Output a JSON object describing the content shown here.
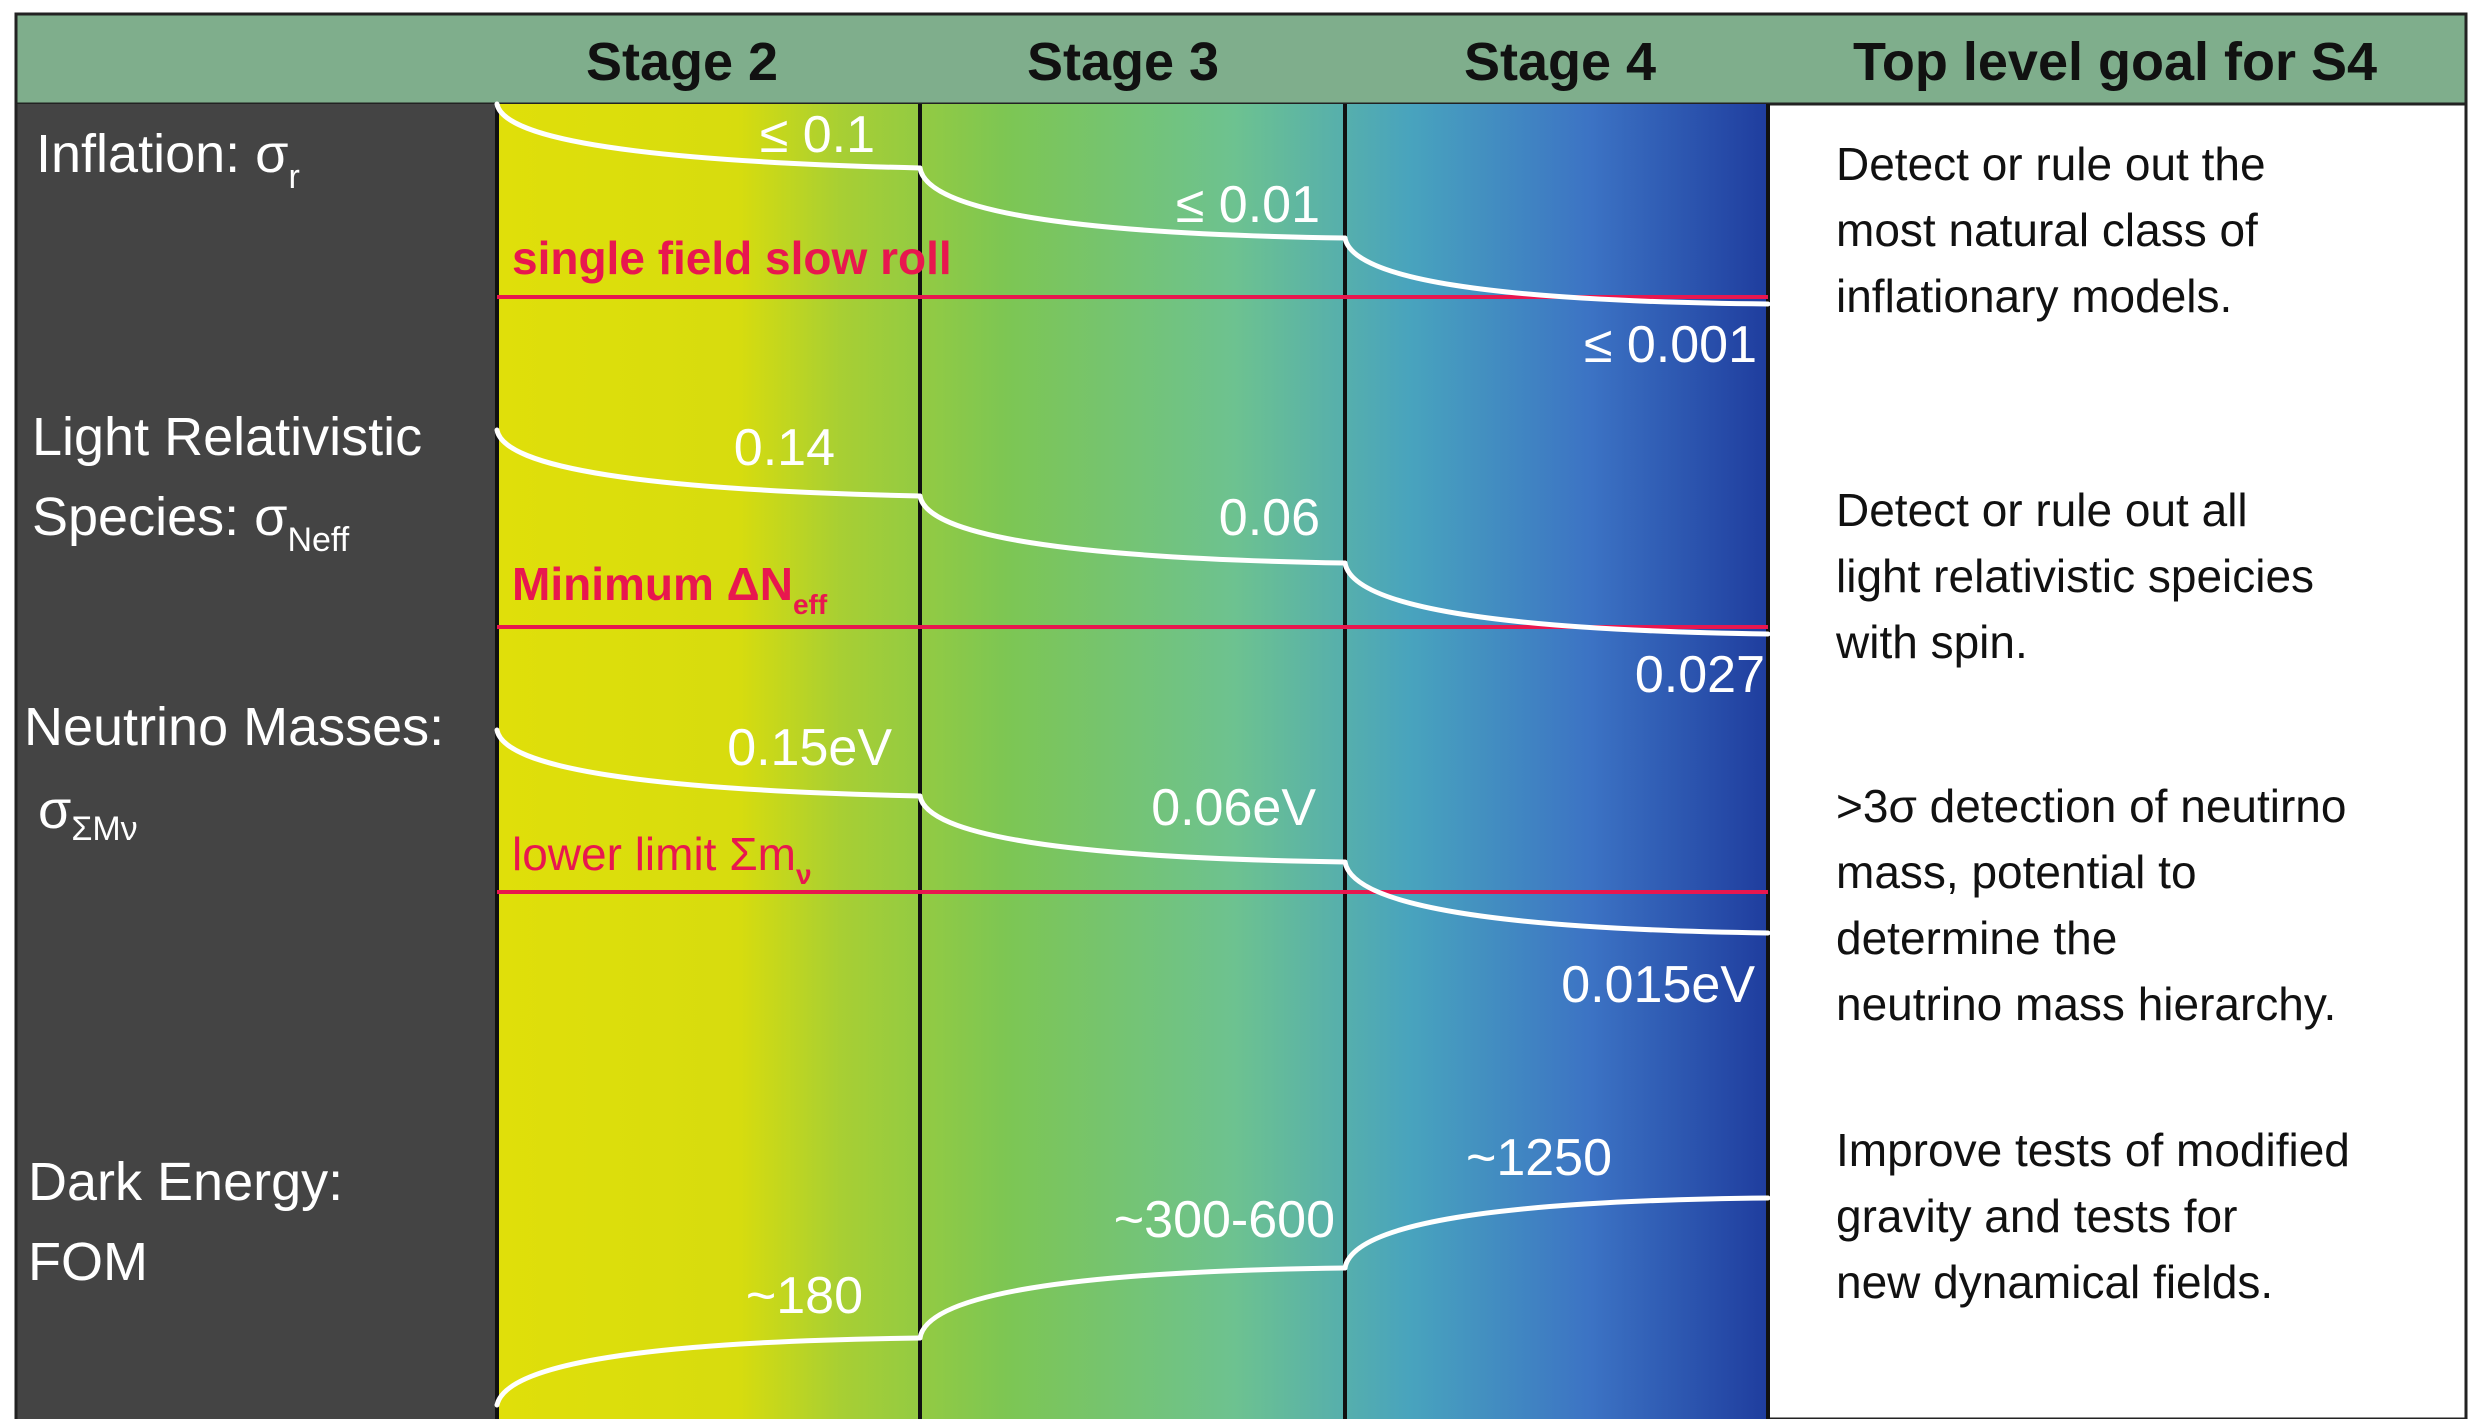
{
  "header": {
    "stages": [
      "Stage 2",
      "Stage 3",
      "Stage 4"
    ],
    "goal_title": "Top level goal for S4"
  },
  "rows": [
    {
      "label_lines": [
        "Inflation: σ"
      ],
      "label_sub": "r",
      "stage_values": [
        "≤ 0.1",
        "≤ 0.01",
        "≤ 0.001"
      ],
      "threshold": {
        "text": "single field slow roll",
        "sub": ""
      },
      "goal_lines": [
        "Detect or rule out the",
        "most natural class of",
        "inflationary models."
      ]
    },
    {
      "label_lines": [
        "Light Relativistic",
        "Species: σ"
      ],
      "label_sub": "Neff",
      "stage_values": [
        "0.14",
        "0.06",
        "0.027"
      ],
      "threshold": {
        "text": "Minimum ΔN",
        "sub": "eff"
      },
      "goal_lines": [
        "Detect or rule out all",
        "light relativistic speicies",
        "with spin."
      ]
    },
    {
      "label_lines": [
        "Neutrino Masses:",
        "σ"
      ],
      "label_sub": "ΣMν",
      "stage_values": [
        "0.15eV",
        "0.06eV",
        "0.015eV"
      ],
      "threshold": {
        "text": "lower limit Σm",
        "sub": "ν"
      },
      "goal_lines": [
        ">3σ detection of neutirno",
        "mass, potential to",
        "determine the",
        "neutrino mass hierarchy."
      ]
    },
    {
      "label_lines": [
        "Dark Energy:",
        "FOM"
      ],
      "label_sub": "",
      "stage_values": [
        "~180",
        "~300-600",
        "~1250"
      ],
      "threshold": null,
      "goal_lines": [
        "Improve tests of modified",
        "gravity and tests for",
        "new dynamical fields."
      ]
    }
  ],
  "colors": {
    "header_bg": "#7fae8c",
    "label_bg": "#444444",
    "stage2_left": "#e0df0a",
    "stage3": "#79c454",
    "stage4_right": "#1f3d9e",
    "threshold_line": "#e8174f",
    "curve": "#ffffff"
  }
}
